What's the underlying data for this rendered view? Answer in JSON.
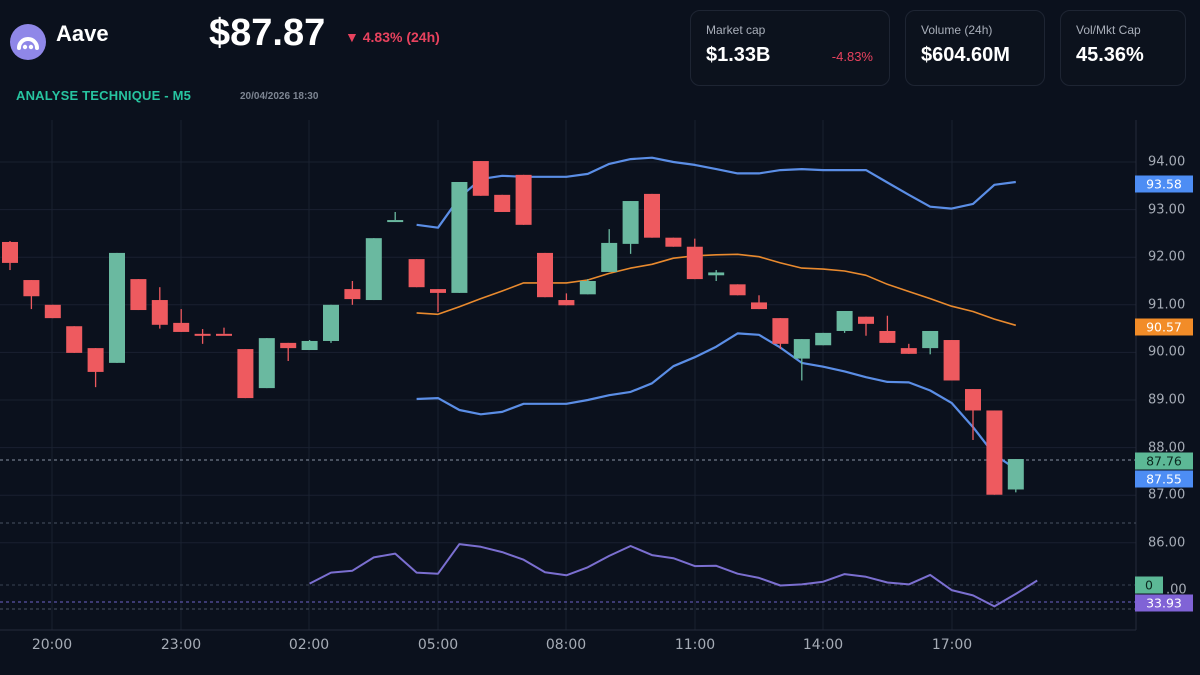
{
  "header": {
    "coin_name": "Aave",
    "price": "$87.87",
    "change": "▼ 4.83% (24h)",
    "section_title": "ANALYSE TECHNIQUE - M5",
    "timestamp": "20/04/2026 18:30",
    "logo_icon": "aave-ghost-icon"
  },
  "stats": [
    {
      "label": "Market cap",
      "value": "$1.33B",
      "delta": "-4.83%"
    },
    {
      "label": "Volume (24h)",
      "value": "$604.60M"
    },
    {
      "label": "Vol/Mkt Cap",
      "value": "45.36%"
    }
  ],
  "colors": {
    "up": "#6ab9a0",
    "down": "#ee5a5f",
    "bb_band": "#5b8ee6",
    "bb_mid": "#e98a2e",
    "rsi": "#7b6fd0",
    "accent": "#27c4a0",
    "negative": "#e8425e"
  },
  "chart_data": {
    "type": "candlestick",
    "title": "ANALYSE TECHNIQUE - M5",
    "xlabel": "",
    "ylabel": "",
    "ylim": [
      85.5,
      95.0
    ],
    "grid": true,
    "x_ticks": [
      "20:00",
      "23:00",
      "02:00",
      "05:00",
      "08:00",
      "11:00",
      "14:00",
      "17:00"
    ],
    "y_ticks": [
      "94.00",
      "93.00",
      "92.00",
      "91.00",
      "90.00",
      "89.00",
      "88.00",
      "87.00",
      "86.00"
    ],
    "candles": [
      {
        "o": 92.32,
        "h": 92.34,
        "l": 91.73,
        "c": 91.88
      },
      {
        "o": 91.52,
        "h": 91.52,
        "l": 90.91,
        "c": 91.18
      },
      {
        "o": 91.0,
        "h": 91.0,
        "l": 90.72,
        "c": 90.72
      },
      {
        "o": 90.55,
        "h": 90.55,
        "l": 89.99,
        "c": 89.99
      },
      {
        "o": 90.09,
        "h": 90.09,
        "l": 89.27,
        "c": 89.59
      },
      {
        "o": 89.78,
        "h": 92.09,
        "l": 89.78,
        "c": 92.09
      },
      {
        "o": 91.54,
        "h": 91.54,
        "l": 90.89,
        "c": 90.89
      },
      {
        "o": 91.1,
        "h": 91.37,
        "l": 90.5,
        "c": 90.58
      },
      {
        "o": 90.62,
        "h": 90.91,
        "l": 90.43,
        "c": 90.43
      },
      {
        "o": 90.39,
        "h": 90.49,
        "l": 90.18,
        "c": 90.37
      },
      {
        "o": 90.39,
        "h": 90.52,
        "l": 90.39,
        "c": 90.37
      },
      {
        "o": 90.07,
        "h": 90.07,
        "l": 89.04,
        "c": 89.04
      },
      {
        "o": 89.25,
        "h": 90.3,
        "l": 89.25,
        "c": 90.3
      },
      {
        "o": 90.2,
        "h": 90.2,
        "l": 89.82,
        "c": 90.09
      },
      {
        "o": 90.05,
        "h": 90.26,
        "l": 90.05,
        "c": 90.24
      },
      {
        "o": 90.24,
        "h": 91.0,
        "l": 90.2,
        "c": 91.0
      },
      {
        "o": 91.33,
        "h": 91.5,
        "l": 91.0,
        "c": 91.12
      },
      {
        "o": 91.1,
        "h": 92.4,
        "l": 91.1,
        "c": 92.4
      },
      {
        "o": 92.78,
        "h": 92.95,
        "l": 92.78,
        "c": 92.78
      },
      {
        "o": 91.96,
        "h": 91.96,
        "l": 91.37,
        "c": 91.37
      },
      {
        "o": 91.33,
        "h": 91.33,
        "l": 90.85,
        "c": 91.25
      },
      {
        "o": 91.25,
        "h": 93.58,
        "l": 91.25,
        "c": 93.58
      },
      {
        "o": 94.02,
        "h": 94.02,
        "l": 93.29,
        "c": 93.29
      },
      {
        "o": 93.31,
        "h": 93.31,
        "l": 92.95,
        "c": 92.95
      },
      {
        "o": 93.73,
        "h": 93.73,
        "l": 92.68,
        "c": 92.68
      },
      {
        "o": 92.09,
        "h": 92.09,
        "l": 91.16,
        "c": 91.16
      },
      {
        "o": 91.1,
        "h": 91.24,
        "l": 90.99,
        "c": 90.99
      },
      {
        "o": 91.22,
        "h": 91.54,
        "l": 91.22,
        "c": 91.5
      },
      {
        "o": 91.69,
        "h": 92.59,
        "l": 91.69,
        "c": 92.3
      },
      {
        "o": 92.28,
        "h": 93.18,
        "l": 92.07,
        "c": 93.18
      },
      {
        "o": 93.33,
        "h": 93.33,
        "l": 92.41,
        "c": 92.41
      },
      {
        "o": 92.41,
        "h": 92.41,
        "l": 92.22,
        "c": 92.22
      },
      {
        "o": 92.22,
        "h": 92.39,
        "l": 91.54,
        "c": 91.54
      },
      {
        "o": 91.62,
        "h": 91.73,
        "l": 91.5,
        "c": 91.68
      },
      {
        "o": 91.43,
        "h": 91.43,
        "l": 91.2,
        "c": 91.2
      },
      {
        "o": 91.05,
        "h": 91.2,
        "l": 90.91,
        "c": 90.91
      },
      {
        "o": 90.72,
        "h": 90.72,
        "l": 90.07,
        "c": 90.18
      },
      {
        "o": 89.87,
        "h": 90.28,
        "l": 89.41,
        "c": 90.28
      },
      {
        "o": 90.15,
        "h": 90.41,
        "l": 90.15,
        "c": 90.41
      },
      {
        "o": 90.45,
        "h": 90.87,
        "l": 90.41,
        "c": 90.87
      },
      {
        "o": 90.75,
        "h": 90.75,
        "l": 90.35,
        "c": 90.6
      },
      {
        "o": 90.45,
        "h": 90.77,
        "l": 90.2,
        "c": 90.2
      },
      {
        "o": 90.09,
        "h": 90.18,
        "l": 89.97,
        "c": 89.97
      },
      {
        "o": 90.09,
        "h": 90.45,
        "l": 89.96,
        "c": 90.45
      },
      {
        "o": 90.26,
        "h": 90.26,
        "l": 89.41,
        "c": 89.41
      },
      {
        "o": 89.23,
        "h": 89.23,
        "l": 88.16,
        "c": 88.78
      },
      {
        "o": 88.78,
        "h": 88.78,
        "l": 87.01,
        "c": 87.01
      },
      {
        "o": 87.12,
        "h": 87.76,
        "l": 87.06,
        "c": 87.76
      }
    ],
    "series": [
      {
        "name": "Bollinger Upper",
        "color": "#5b8ee6",
        "start_index": 19,
        "values": [
          92.68,
          92.62,
          93.25,
          93.64,
          93.71,
          93.69,
          93.69,
          93.69,
          93.75,
          93.96,
          94.06,
          94.09,
          94.0,
          93.94,
          93.85,
          93.76,
          93.76,
          93.83,
          93.85,
          93.83,
          93.83,
          93.83,
          93.57,
          93.31,
          93.06,
          93.02,
          93.12,
          93.52,
          93.58
        ]
      },
      {
        "name": "Bollinger Middle",
        "color": "#e98a2e",
        "start_index": 19,
        "values": [
          90.83,
          90.8,
          90.96,
          91.13,
          91.29,
          91.46,
          91.46,
          91.46,
          91.52,
          91.66,
          91.77,
          91.85,
          91.98,
          92.03,
          92.05,
          92.06,
          92.01,
          91.88,
          91.77,
          91.75,
          91.71,
          91.62,
          91.43,
          91.28,
          91.13,
          90.97,
          90.86,
          90.7,
          90.57
        ]
      },
      {
        "name": "Bollinger Lower",
        "color": "#5b8ee6",
        "start_index": 19,
        "values": [
          89.02,
          89.04,
          88.79,
          88.7,
          88.75,
          88.92,
          88.92,
          88.92,
          89.0,
          89.1,
          89.17,
          89.35,
          89.71,
          89.9,
          90.12,
          90.4,
          90.37,
          90.1,
          89.78,
          89.7,
          89.6,
          89.48,
          89.38,
          89.37,
          89.2,
          88.94,
          88.43,
          87.85,
          87.55
        ]
      },
      {
        "name": "RSI",
        "color": "#7b6fd0",
        "panel": "lower",
        "start_index": 14,
        "values": [
          33.1,
          36.0,
          36.5,
          40.0,
          41.0,
          36.0,
          35.7,
          43.5,
          42.8,
          41.4,
          39.4,
          36.1,
          35.3,
          37.4,
          40.4,
          43.0,
          40.6,
          39.8,
          37.7,
          37.8,
          35.7,
          34.6,
          32.6,
          32.9,
          33.6,
          35.6,
          34.9,
          33.4,
          32.9,
          35.4,
          31.4,
          30.0,
          27.1,
          30.4,
          33.93
        ]
      }
    ],
    "price_tags": [
      {
        "value": "93.58",
        "label": "Bollinger Upper",
        "color": "#4d8df4",
        "text_color": "#ffffff"
      },
      {
        "value": "90.57",
        "label": "Bollinger Middle",
        "color": "#f28c28",
        "text_color": "#ffffff"
      },
      {
        "value": "87.76",
        "label": "Last Price",
        "color": "#5cb896",
        "text_color": "#0c2a20"
      },
      {
        "value": "87.55",
        "label": "Bollinger Lower",
        "color": "#4d8df4",
        "text_color": "#ffffff"
      },
      {
        "value": "0",
        "label": "Volume",
        "color": "#5cb896",
        "text_color": "#0c2a20"
      },
      {
        "value": "33.93",
        "label": "RSI",
        "color": "#8063d6",
        "text_color": "#ffffff"
      }
    ],
    "partial_y_label": ".00"
  }
}
